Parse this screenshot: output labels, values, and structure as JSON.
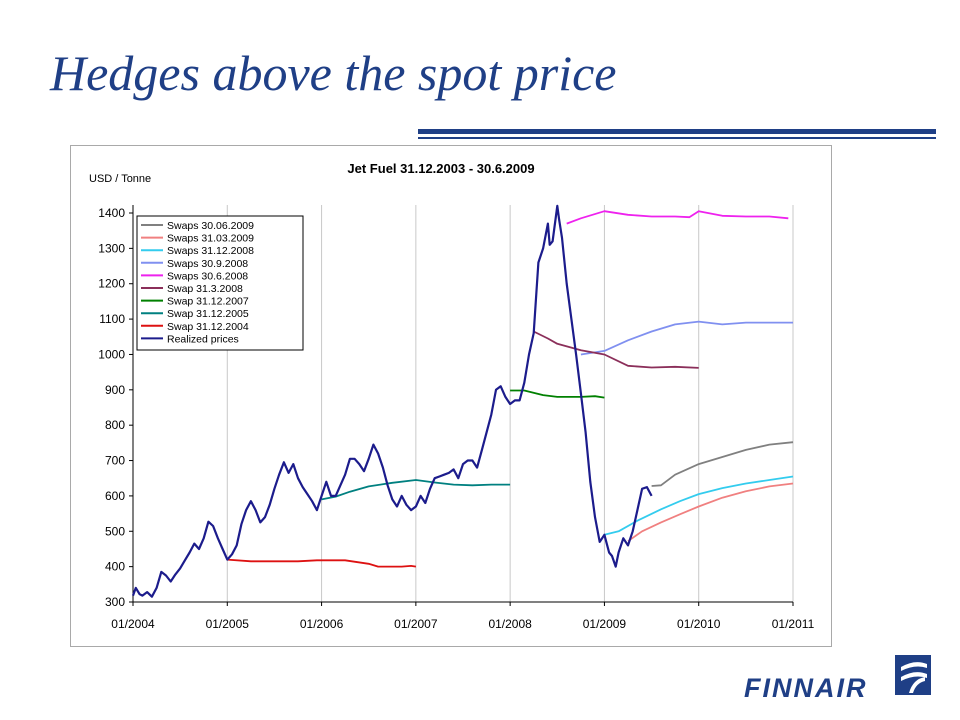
{
  "slide": {
    "title": "Hedges above the spot price",
    "logo_text": "FINNAIR"
  },
  "colors": {
    "title_blue": "#1f3f86",
    "swaps_30_06_2009": "#808080",
    "swaps_31_03_2009": "#f08080",
    "swaps_31_12_2008": "#33ccee",
    "swaps_30_9_2008": "#8090f0",
    "swaps_30_6_2008": "#ee22ee",
    "swap_31_3_2008": "#8b2f5a",
    "swap_31_12_2007": "#008000",
    "swap_31_12_2005": "#008080",
    "swap_31_12_2004": "#dd1111",
    "realized_prices": "#1c1c8c"
  },
  "chart_data": {
    "type": "line",
    "title": "Jet Fuel 31.12.2003 - 30.6.2009",
    "ylabel": "USD / Tonne",
    "xlabel": "",
    "ylim": [
      300,
      1400
    ],
    "xlim": [
      2004.0,
      2011.0
    ],
    "y_ticks": [
      "300",
      "400",
      "500",
      "600",
      "700",
      "800",
      "900",
      "1000",
      "1100",
      "1200",
      "1300",
      "1400"
    ],
    "x_ticks": [
      "01/2004",
      "01/2005",
      "01/2006",
      "01/2007",
      "01/2008",
      "01/2009",
      "01/2010",
      "01/2011"
    ],
    "grid": "vertical",
    "legend": "top-left",
    "series": [
      {
        "name": "Swaps 30.06.2009",
        "color": "#808080",
        "points": [
          [
            2009.5,
            628
          ],
          [
            2009.6,
            630
          ],
          [
            2009.75,
            660
          ],
          [
            2010.0,
            690
          ],
          [
            2010.25,
            710
          ],
          [
            2010.5,
            730
          ],
          [
            2010.75,
            745
          ],
          [
            2011.0,
            752
          ]
        ]
      },
      {
        "name": "Swaps 31.03.2009",
        "color": "#f08080",
        "points": [
          [
            2009.25,
            472
          ],
          [
            2009.4,
            500
          ],
          [
            2009.6,
            525
          ],
          [
            2009.8,
            548
          ],
          [
            2010.0,
            570
          ],
          [
            2010.25,
            595
          ],
          [
            2010.5,
            613
          ],
          [
            2010.75,
            627
          ],
          [
            2011.0,
            635
          ]
        ]
      },
      {
        "name": "Swaps 31.12.2008",
        "color": "#33ccee",
        "points": [
          [
            2009.0,
            490
          ],
          [
            2009.15,
            500
          ],
          [
            2009.35,
            530
          ],
          [
            2009.6,
            562
          ],
          [
            2009.8,
            585
          ],
          [
            2010.0,
            605
          ],
          [
            2010.25,
            622
          ],
          [
            2010.5,
            635
          ],
          [
            2010.75,
            645
          ],
          [
            2011.0,
            655
          ]
        ]
      },
      {
        "name": "Swaps 30.9.2008",
        "color": "#8090f0",
        "points": [
          [
            2008.75,
            1000
          ],
          [
            2009.0,
            1010
          ],
          [
            2009.25,
            1040
          ],
          [
            2009.5,
            1065
          ],
          [
            2009.75,
            1085
          ],
          [
            2010.0,
            1093
          ],
          [
            2010.25,
            1085
          ],
          [
            2010.5,
            1090
          ],
          [
            2010.75,
            1090
          ],
          [
            2011.0,
            1090
          ]
        ]
      },
      {
        "name": "Swaps 30.6.2008",
        "color": "#ee22ee",
        "points": [
          [
            2008.6,
            1370
          ],
          [
            2008.75,
            1385
          ],
          [
            2009.0,
            1405
          ],
          [
            2009.25,
            1395
          ],
          [
            2009.5,
            1390
          ],
          [
            2009.75,
            1390
          ],
          [
            2009.9,
            1388
          ],
          [
            2010.0,
            1405
          ],
          [
            2010.25,
            1392
          ],
          [
            2010.5,
            1390
          ],
          [
            2010.75,
            1390
          ],
          [
            2010.95,
            1385
          ]
        ]
      },
      {
        "name": "Swap 31.3.2008",
        "color": "#8b2f5a",
        "points": [
          [
            2008.25,
            1065
          ],
          [
            2008.4,
            1045
          ],
          [
            2008.5,
            1030
          ],
          [
            2008.75,
            1012
          ],
          [
            2009.0,
            1000
          ],
          [
            2009.25,
            968
          ],
          [
            2009.5,
            963
          ],
          [
            2009.75,
            965
          ],
          [
            2010.0,
            962
          ]
        ]
      },
      {
        "name": "Swap 31.12.2007",
        "color": "#008000",
        "points": [
          [
            2008.0,
            898
          ],
          [
            2008.15,
            898
          ],
          [
            2008.35,
            885
          ],
          [
            2008.5,
            880
          ],
          [
            2008.75,
            880
          ],
          [
            2008.9,
            882
          ],
          [
            2009.0,
            878
          ]
        ]
      },
      {
        "name": "Swap 31.12.2005",
        "color": "#008080",
        "points": [
          [
            2006.0,
            590
          ],
          [
            2006.15,
            598
          ],
          [
            2006.3,
            612
          ],
          [
            2006.5,
            627
          ],
          [
            2006.75,
            637
          ],
          [
            2007.0,
            645
          ],
          [
            2007.2,
            638
          ],
          [
            2007.4,
            632
          ],
          [
            2007.6,
            630
          ],
          [
            2007.8,
            632
          ],
          [
            2008.0,
            632
          ]
        ]
      },
      {
        "name": "Swap 31.12.2004",
        "color": "#dd1111",
        "points": [
          [
            2005.0,
            420
          ],
          [
            2005.25,
            415
          ],
          [
            2005.5,
            415
          ],
          [
            2005.75,
            415
          ],
          [
            2005.95,
            418
          ],
          [
            2006.25,
            418
          ],
          [
            2006.5,
            408
          ],
          [
            2006.6,
            400
          ],
          [
            2006.85,
            400
          ],
          [
            2006.95,
            402
          ],
          [
            2007.0,
            400
          ]
        ]
      },
      {
        "name": "Realized prices",
        "color": "#1c1c8c",
        "points": [
          [
            2004.0,
            318
          ],
          [
            2004.03,
            340
          ],
          [
            2004.07,
            322
          ],
          [
            2004.1,
            318
          ],
          [
            2004.15,
            328
          ],
          [
            2004.2,
            315
          ],
          [
            2004.25,
            340
          ],
          [
            2004.3,
            385
          ],
          [
            2004.35,
            375
          ],
          [
            2004.4,
            358
          ],
          [
            2004.45,
            378
          ],
          [
            2004.5,
            395
          ],
          [
            2004.55,
            418
          ],
          [
            2004.6,
            440
          ],
          [
            2004.65,
            465
          ],
          [
            2004.7,
            450
          ],
          [
            2004.75,
            480
          ],
          [
            2004.8,
            527
          ],
          [
            2004.85,
            515
          ],
          [
            2004.9,
            480
          ],
          [
            2004.95,
            450
          ],
          [
            2005.0,
            420
          ],
          [
            2005.05,
            435
          ],
          [
            2005.1,
            460
          ],
          [
            2005.15,
            520
          ],
          [
            2005.2,
            560
          ],
          [
            2005.25,
            585
          ],
          [
            2005.3,
            560
          ],
          [
            2005.35,
            525
          ],
          [
            2005.4,
            540
          ],
          [
            2005.45,
            575
          ],
          [
            2005.5,
            620
          ],
          [
            2005.55,
            660
          ],
          [
            2005.6,
            695
          ],
          [
            2005.65,
            665
          ],
          [
            2005.7,
            690
          ],
          [
            2005.75,
            650
          ],
          [
            2005.8,
            625
          ],
          [
            2005.85,
            605
          ],
          [
            2005.9,
            585
          ],
          [
            2005.95,
            560
          ],
          [
            2006.0,
            600
          ],
          [
            2006.05,
            640
          ],
          [
            2006.1,
            600
          ],
          [
            2006.15,
            600
          ],
          [
            2006.2,
            630
          ],
          [
            2006.25,
            660
          ],
          [
            2006.3,
            705
          ],
          [
            2006.35,
            705
          ],
          [
            2006.4,
            690
          ],
          [
            2006.45,
            670
          ],
          [
            2006.5,
            705
          ],
          [
            2006.55,
            745
          ],
          [
            2006.6,
            720
          ],
          [
            2006.65,
            680
          ],
          [
            2006.7,
            630
          ],
          [
            2006.75,
            590
          ],
          [
            2006.8,
            570
          ],
          [
            2006.85,
            600
          ],
          [
            2006.9,
            575
          ],
          [
            2006.95,
            560
          ],
          [
            2007.0,
            570
          ],
          [
            2007.05,
            600
          ],
          [
            2007.1,
            580
          ],
          [
            2007.15,
            620
          ],
          [
            2007.2,
            650
          ],
          [
            2007.25,
            655
          ],
          [
            2007.3,
            660
          ],
          [
            2007.35,
            665
          ],
          [
            2007.4,
            675
          ],
          [
            2007.45,
            650
          ],
          [
            2007.5,
            690
          ],
          [
            2007.55,
            700
          ],
          [
            2007.6,
            700
          ],
          [
            2007.65,
            680
          ],
          [
            2007.7,
            730
          ],
          [
            2007.75,
            780
          ],
          [
            2007.8,
            830
          ],
          [
            2007.85,
            900
          ],
          [
            2007.9,
            910
          ],
          [
            2007.95,
            880
          ],
          [
            2008.0,
            860
          ],
          [
            2008.05,
            870
          ],
          [
            2008.1,
            870
          ],
          [
            2008.15,
            920
          ],
          [
            2008.2,
            1000
          ],
          [
            2008.25,
            1060
          ],
          [
            2008.28,
            1180
          ],
          [
            2008.3,
            1260
          ],
          [
            2008.35,
            1300
          ],
          [
            2008.4,
            1370
          ],
          [
            2008.42,
            1310
          ],
          [
            2008.45,
            1320
          ],
          [
            2008.5,
            1420
          ],
          [
            2008.52,
            1380
          ],
          [
            2008.55,
            1330
          ],
          [
            2008.6,
            1200
          ],
          [
            2008.65,
            1100
          ],
          [
            2008.7,
            1000
          ],
          [
            2008.75,
            890
          ],
          [
            2008.8,
            780
          ],
          [
            2008.85,
            640
          ],
          [
            2008.9,
            540
          ],
          [
            2008.95,
            470
          ],
          [
            2009.0,
            490
          ],
          [
            2009.05,
            440
          ],
          [
            2009.08,
            430
          ],
          [
            2009.12,
            400
          ],
          [
            2009.15,
            440
          ],
          [
            2009.2,
            480
          ],
          [
            2009.25,
            460
          ],
          [
            2009.3,
            500
          ],
          [
            2009.35,
            560
          ],
          [
            2009.4,
            620
          ],
          [
            2009.45,
            625
          ],
          [
            2009.5,
            600
          ]
        ]
      }
    ]
  }
}
